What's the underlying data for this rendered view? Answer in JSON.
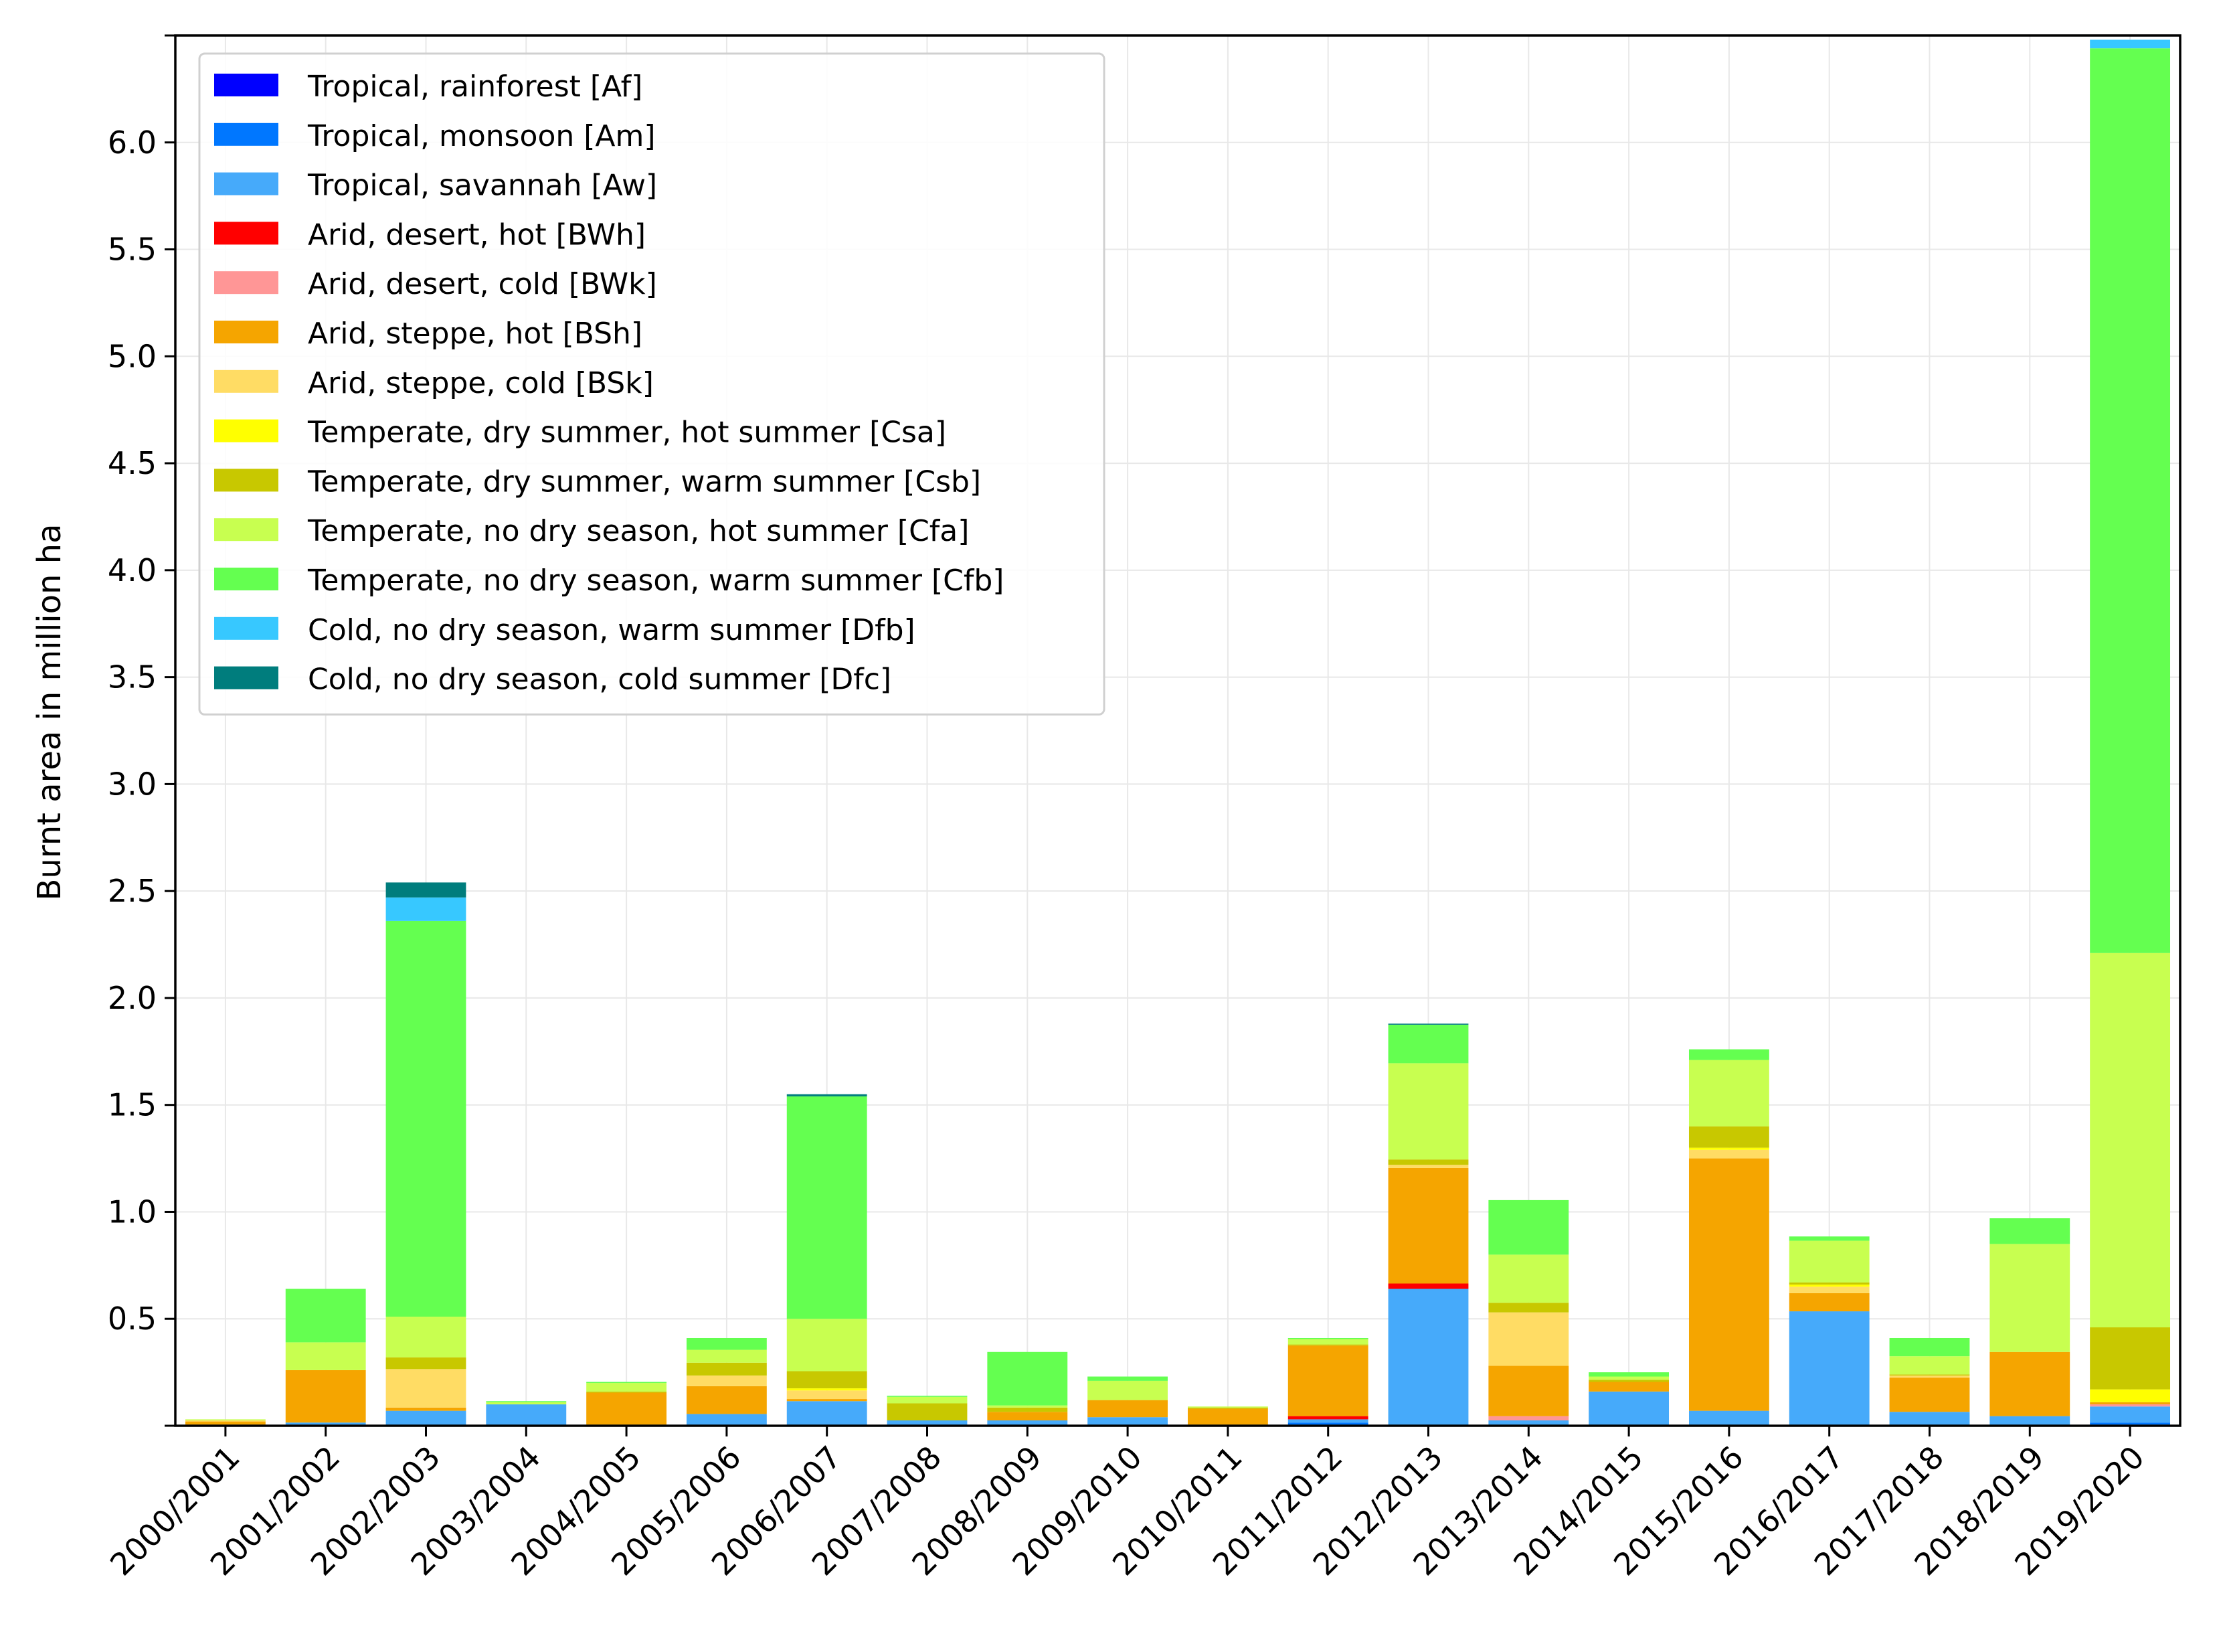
{
  "chart_data": {
    "type": "bar",
    "stacked": true,
    "title": "",
    "xlabel": "",
    "ylabel": "Burnt area in million ha",
    "ylim": [
      0,
      6.5
    ],
    "yticks": [
      "0.5",
      "1.0",
      "1.5",
      "2.0",
      "2.5",
      "3.0",
      "3.5",
      "4.0",
      "4.5",
      "5.0",
      "5.5",
      "6.0"
    ],
    "grid": true,
    "legend_position": "upper-left",
    "categories": [
      "2000/2001",
      "2001/2002",
      "2002/2003",
      "2003/2004",
      "2004/2005",
      "2005/2006",
      "2006/2007",
      "2007/2008",
      "2008/2009",
      "2009/2010",
      "2010/2011",
      "2011/2012",
      "2012/2013",
      "2013/2014",
      "2014/2015",
      "2015/2016",
      "2016/2017",
      "2017/2018",
      "2018/2019",
      "2019/2020"
    ],
    "series": [
      {
        "name": "Tropical, rainforest [Af]",
        "color": "#0000ff",
        "values": [
          0,
          0,
          0,
          0,
          0,
          0,
          0,
          0,
          0,
          0,
          0,
          0,
          0,
          0,
          0,
          0,
          0,
          0,
          0,
          0.005
        ]
      },
      {
        "name": "Tropical, monsoon [Am]",
        "color": "#0077ff",
        "values": [
          0,
          0.005,
          0,
          0,
          0,
          0,
          0,
          0,
          0,
          0,
          0,
          0.015,
          0,
          0,
          0,
          0,
          0,
          0,
          0,
          0.01
        ]
      },
      {
        "name": "Tropical, savannah [Aw]",
        "color": "#46aafa",
        "values": [
          0.005,
          0.01,
          0.07,
          0.1,
          0.005,
          0.055,
          0.115,
          0.025,
          0.025,
          0.04,
          0.005,
          0.015,
          0.64,
          0.025,
          0.16,
          0.07,
          0.535,
          0.065,
          0.045,
          0.075
        ]
      },
      {
        "name": "Arid, desert, hot [BWh]",
        "color": "#ff0000",
        "values": [
          0,
          0,
          0,
          0,
          0,
          0,
          0,
          0,
          0,
          0,
          0,
          0.015,
          0.025,
          0,
          0,
          0,
          0,
          0,
          0,
          0
        ]
      },
      {
        "name": "Arid, desert, cold [BWk]",
        "color": "#ff9696",
        "values": [
          0,
          0,
          0,
          0,
          0,
          0,
          0,
          0,
          0,
          0,
          0,
          0,
          0,
          0.02,
          0,
          0,
          0,
          0,
          0,
          0.01
        ]
      },
      {
        "name": "Arid, steppe, hot [BSh]",
        "color": "#f5a500",
        "values": [
          0.015,
          0.245,
          0.015,
          0,
          0.15,
          0.13,
          0.01,
          0,
          0.04,
          0.08,
          0.075,
          0.33,
          0.54,
          0.235,
          0.045,
          1.18,
          0.085,
          0.16,
          0.3,
          0.01
        ]
      },
      {
        "name": "Arid, steppe, cold [BSk]",
        "color": "#ffdc64",
        "values": [
          0.005,
          0,
          0.18,
          0,
          0,
          0.05,
          0.04,
          0,
          0,
          0,
          0,
          0,
          0.015,
          0.25,
          0,
          0.04,
          0.03,
          0.01,
          0,
          0
        ]
      },
      {
        "name": "Temperate, dry summer, hot summer [Csa]",
        "color": "#ffff00",
        "values": [
          0,
          0,
          0,
          0,
          0,
          0,
          0.01,
          0,
          0,
          0,
          0,
          0,
          0,
          0,
          0,
          0.01,
          0.01,
          0,
          0,
          0.06
        ]
      },
      {
        "name": "Temperate, dry summer, warm summer [Csb]",
        "color": "#c8c800",
        "values": [
          0,
          0,
          0.055,
          0,
          0.005,
          0.06,
          0.08,
          0.08,
          0.02,
          0,
          0.005,
          0.005,
          0.025,
          0.045,
          0.01,
          0.1,
          0.01,
          0.005,
          0,
          0.29
        ]
      },
      {
        "name": "Temperate, no dry season, hot summer [Cfa]",
        "color": "#c8ff50",
        "values": [
          0.005,
          0.13,
          0.19,
          0.01,
          0.04,
          0.06,
          0.245,
          0.03,
          0.01,
          0.09,
          0.005,
          0.025,
          0.45,
          0.225,
          0.015,
          0.31,
          0.195,
          0.085,
          0.505,
          1.75
        ]
      },
      {
        "name": "Temperate, no dry season, warm summer [Cfb]",
        "color": "#64ff50",
        "values": [
          0,
          0.25,
          1.85,
          0.005,
          0.005,
          0.055,
          1.04,
          0.005,
          0.25,
          0.02,
          0,
          0.005,
          0.18,
          0.255,
          0.02,
          0.05,
          0.02,
          0.085,
          0.12,
          4.23
        ]
      },
      {
        "name": "Cold, no dry season, warm summer [Dfb]",
        "color": "#37c8ff",
        "values": [
          0,
          0,
          0.11,
          0,
          0,
          0,
          0,
          0,
          0,
          0,
          0,
          0,
          0,
          0,
          0,
          0,
          0,
          0,
          0,
          0.04
        ]
      },
      {
        "name": "Cold, no dry season, cold summer [Dfc]",
        "color": "#007d7d",
        "values": [
          0,
          0,
          0.07,
          0,
          0,
          0,
          0.01,
          0,
          0,
          0,
          0,
          0,
          0.005,
          0,
          0,
          0,
          0,
          0,
          0,
          0
        ]
      }
    ]
  }
}
